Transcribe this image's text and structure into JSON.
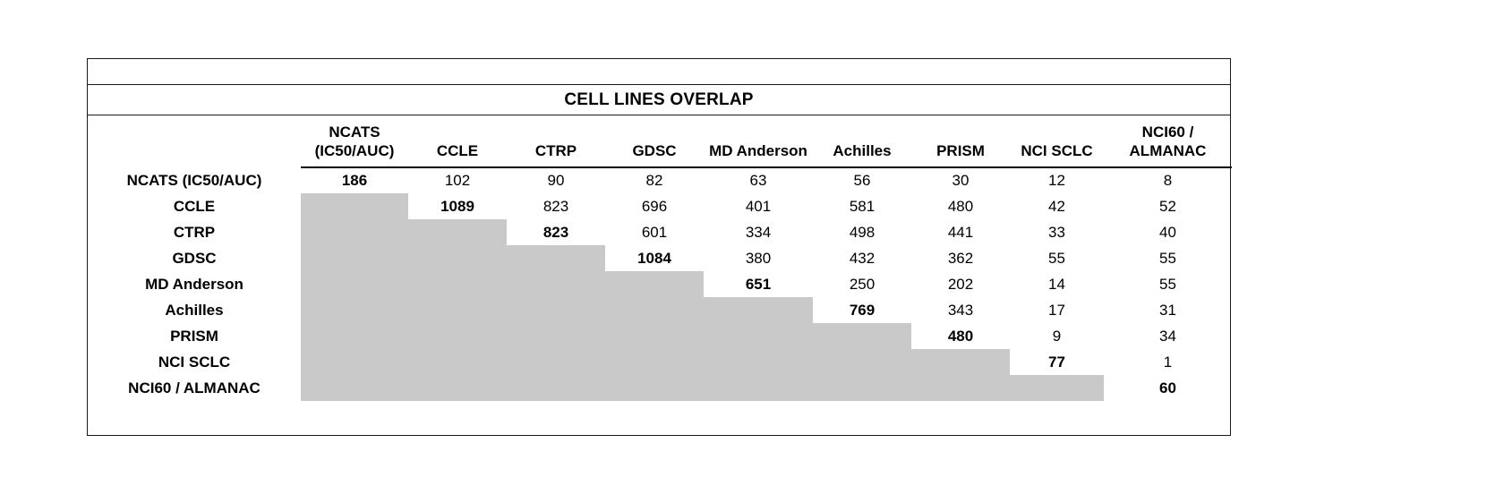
{
  "chart_data": {
    "type": "table",
    "title": "CELL LINES OVERLAP",
    "description": "Upper-triangular matrix of overlapping cell line counts between datasets; lower triangle shaded gray, diagonal (self-overlap) in bold.",
    "shaded_color": "#c9c9c9",
    "columns": [
      "NCATS\n(IC50/AUC)",
      "CCLE",
      "CTRP",
      "GDSC",
      "MD Anderson",
      "Achilles",
      "PRISM",
      "NCI SCLC",
      "NCI60 /\nALMANAC"
    ],
    "rows": [
      {
        "label": "NCATS (IC50/AUC)",
        "values": [
          186,
          102,
          90,
          82,
          63,
          56,
          30,
          12,
          8
        ]
      },
      {
        "label": "CCLE",
        "values": [
          1089,
          823,
          696,
          401,
          581,
          480,
          42,
          52
        ]
      },
      {
        "label": "CTRP",
        "values": [
          823,
          601,
          334,
          498,
          441,
          33,
          40
        ]
      },
      {
        "label": "GDSC",
        "values": [
          1084,
          380,
          432,
          362,
          55,
          55
        ]
      },
      {
        "label": "MD Anderson",
        "values": [
          651,
          250,
          202,
          14,
          55
        ]
      },
      {
        "label": "Achilles",
        "values": [
          769,
          343,
          17,
          31
        ]
      },
      {
        "label": "PRISM",
        "values": [
          480,
          9,
          34
        ]
      },
      {
        "label": "NCI SCLC",
        "values": [
          77,
          1
        ]
      },
      {
        "label": "NCI60 / ALMANAC",
        "values": [
          60
        ]
      }
    ]
  }
}
